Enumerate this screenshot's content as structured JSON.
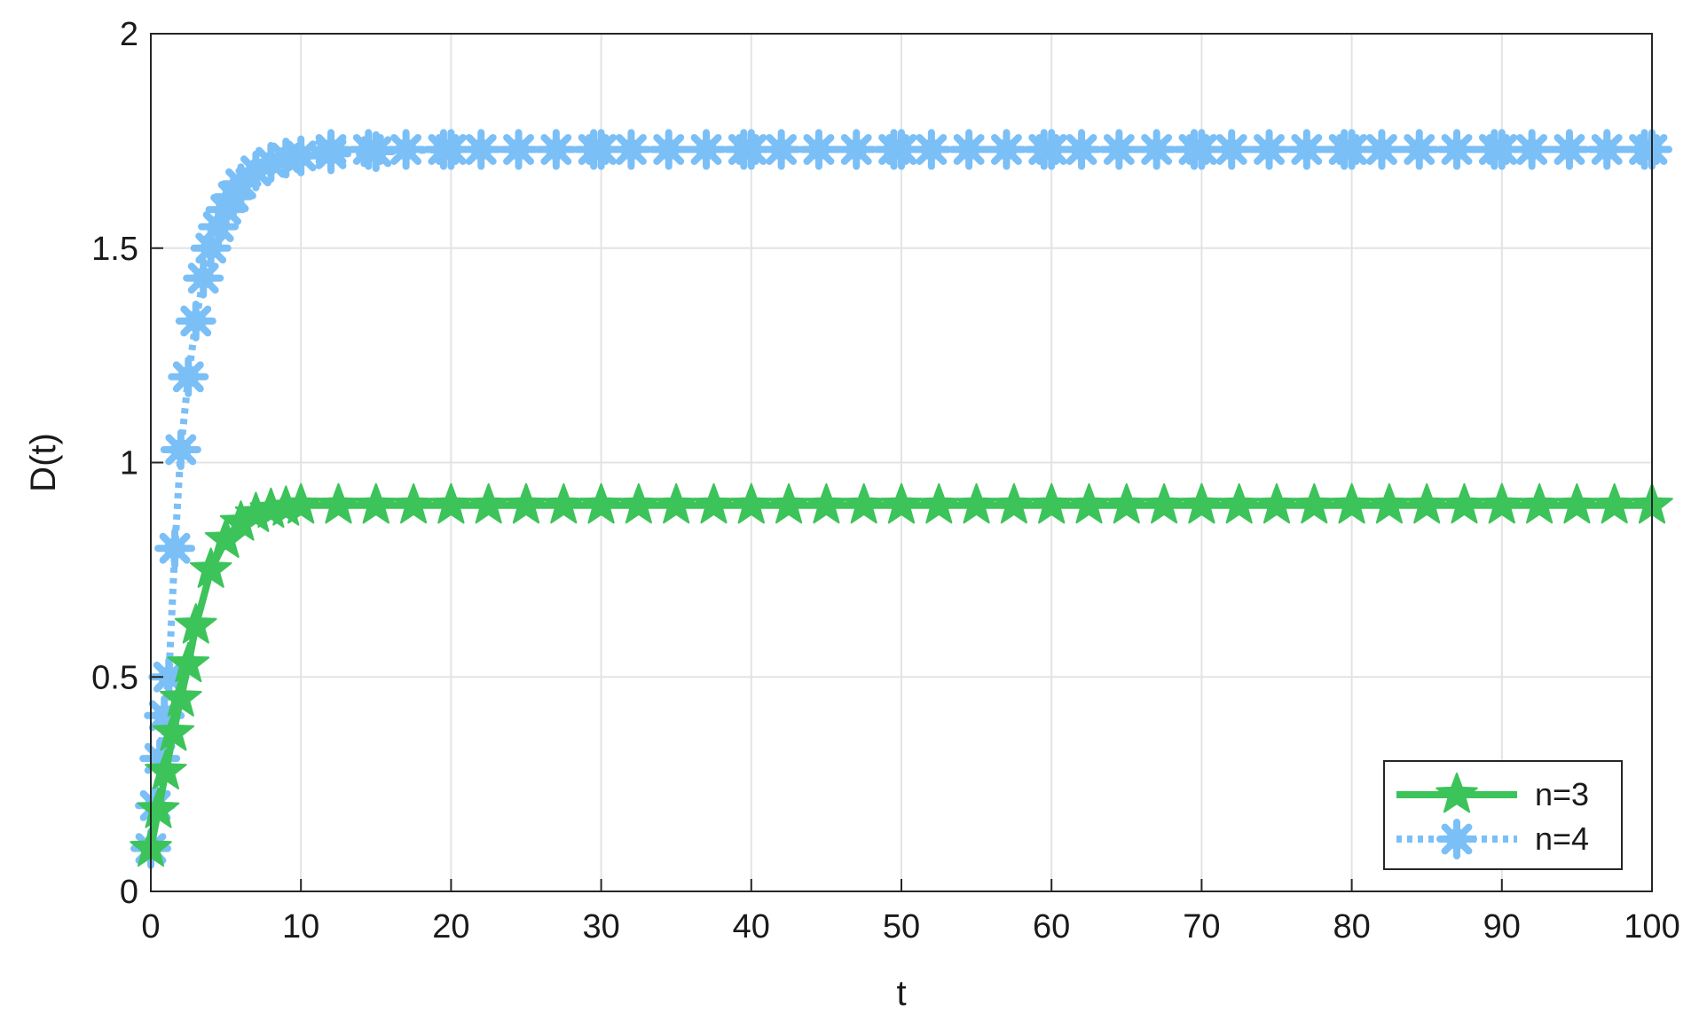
{
  "chart_data": {
    "type": "line",
    "xlabel": "t",
    "ylabel": "D(t)",
    "xlim": [
      0,
      100
    ],
    "ylim": [
      0,
      2
    ],
    "xticks": [
      "0",
      "10",
      "20",
      "30",
      "40",
      "50",
      "60",
      "70",
      "80",
      "90",
      "100"
    ],
    "yticks": [
      "0",
      "0.5",
      "1",
      "1.5",
      "2"
    ],
    "grid": true,
    "legend_position": "bottom-right",
    "series": [
      {
        "name": "n=3",
        "color": "#3cc35a",
        "line_style": "solid",
        "marker": "pentagram",
        "x": [
          0,
          0.5,
          1,
          1.5,
          2,
          2.5,
          3,
          4,
          5,
          6,
          7,
          8,
          9,
          10,
          12.5,
          15,
          20,
          25,
          30,
          40,
          50,
          60,
          70,
          80,
          90,
          100
        ],
        "y": [
          0.1,
          0.19,
          0.28,
          0.37,
          0.45,
          0.53,
          0.62,
          0.75,
          0.82,
          0.86,
          0.88,
          0.89,
          0.895,
          0.9,
          0.9,
          0.9,
          0.9,
          0.9,
          0.9,
          0.9,
          0.9,
          0.9,
          0.9,
          0.9,
          0.9,
          0.9
        ]
      },
      {
        "name": "n=4",
        "color": "#7bbff7",
        "line_style": "dotted",
        "marker": "asterisk",
        "x": [
          0,
          0.3,
          0.6,
          0.9,
          1.2,
          1.6,
          2,
          2.5,
          3,
          3.5,
          4,
          4.5,
          5,
          5.5,
          6,
          7,
          8,
          9,
          10,
          12,
          15,
          20,
          30,
          40,
          50,
          60,
          70,
          80,
          90,
          100
        ],
        "y": [
          0.1,
          0.2,
          0.31,
          0.41,
          0.5,
          0.8,
          1.03,
          1.2,
          1.33,
          1.43,
          1.5,
          1.55,
          1.59,
          1.62,
          1.65,
          1.68,
          1.7,
          1.71,
          1.715,
          1.72,
          1.725,
          1.73,
          1.73,
          1.73,
          1.73,
          1.73,
          1.73,
          1.73,
          1.73,
          1.73
        ]
      }
    ]
  }
}
